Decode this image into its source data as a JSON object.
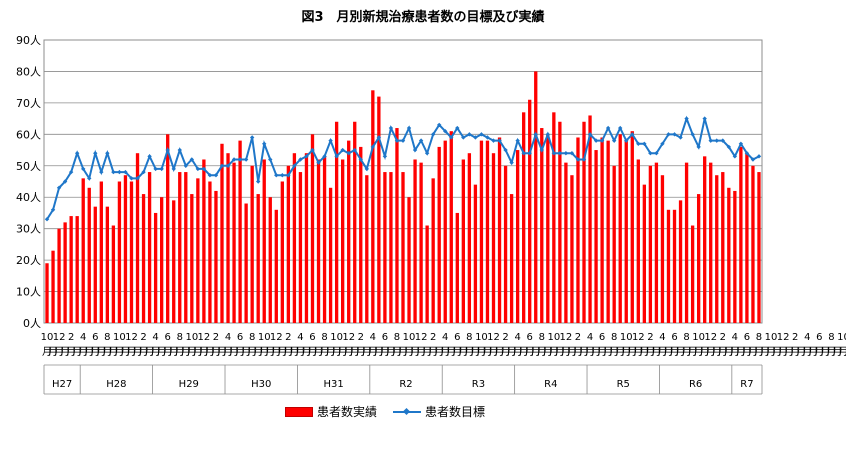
{
  "chart_data": {
    "type": "bar",
    "title": "図3　月別新規治療患者数の目標及び実績",
    "ylim": [
      0,
      90
    ],
    "y_ticks": [
      "0人",
      "10人",
      "20人",
      "30人",
      "40人",
      "50人",
      "60人",
      "70人",
      "80人",
      "90人"
    ],
    "grid": true,
    "legend_position": "bottom",
    "month_labels": [
      "10",
      "",
      "12",
      "",
      "2",
      "",
      "4",
      "",
      "6",
      "",
      "8",
      "",
      "10",
      "",
      "12",
      "",
      "2",
      "",
      "4",
      "",
      "6",
      "",
      "8",
      "",
      "10",
      "",
      "12",
      "",
      "2",
      "",
      "4",
      "",
      "6",
      "",
      "8",
      "",
      "10",
      "",
      "12",
      "",
      "2",
      "",
      "4",
      "",
      "6",
      "",
      "8",
      "",
      "10",
      "",
      "12",
      "",
      "2",
      "",
      "4",
      "",
      "6",
      "",
      "8",
      "",
      "10",
      "",
      "12",
      "",
      "2",
      "",
      "4",
      "",
      "6",
      "",
      "8",
      "",
      "10",
      "",
      "12",
      "",
      "2",
      "",
      "4",
      "",
      "6",
      "",
      "8",
      "",
      "10",
      "",
      "12",
      "",
      "2",
      "",
      "4",
      "",
      "6",
      "",
      "8",
      "",
      "10",
      "",
      "12",
      "",
      "2",
      "",
      "4",
      "",
      "6",
      "",
      "8",
      "",
      "10",
      "",
      "12",
      "",
      "2",
      "",
      "4",
      "",
      "6",
      "",
      "8",
      "",
      "10",
      "",
      "12",
      "",
      "2",
      "",
      "4",
      "",
      "6",
      "",
      "8",
      "",
      "10",
      "",
      "12",
      "",
      "2",
      "",
      "4"
    ],
    "month_unit": "月",
    "year_groups": [
      {
        "label": "H27",
        "start": 0,
        "end": 5
      },
      {
        "label": "H28",
        "start": 6,
        "end": 17
      },
      {
        "label": "H29",
        "start": 18,
        "end": 29
      },
      {
        "label": "H30",
        "start": 30,
        "end": 41
      },
      {
        "label": "H31",
        "start": 42,
        "end": 53
      },
      {
        "label": "R2",
        "start": 54,
        "end": 65
      },
      {
        "label": "R3",
        "start": 66,
        "end": 77
      },
      {
        "label": "R4",
        "start": 78,
        "end": 89
      },
      {
        "label": "R5",
        "start": 90,
        "end": 101
      },
      {
        "label": "R6",
        "start": 102,
        "end": 113
      },
      {
        "label": "R7",
        "start": 114,
        "end": 118
      }
    ],
    "series": [
      {
        "name": "患者数実績",
        "kind": "bar",
        "color": "#ff0000",
        "values": [
          19,
          23,
          30,
          32,
          34,
          34,
          46,
          43,
          37,
          45,
          37,
          31,
          45,
          47,
          45,
          54,
          41,
          48,
          35,
          40,
          60,
          39,
          48,
          48,
          41,
          46,
          52,
          45,
          42,
          57,
          54,
          51,
          58,
          38,
          50,
          41,
          52,
          40,
          36,
          45,
          50,
          54,
          48,
          54,
          60,
          52,
          53,
          43,
          64,
          52,
          58,
          64,
          56,
          47,
          74,
          72,
          48,
          48,
          62,
          48,
          40,
          52,
          51,
          31,
          46,
          56,
          58,
          61,
          35,
          52,
          54,
          44,
          58,
          58,
          54,
          59,
          50,
          41,
          55,
          67,
          71,
          80,
          62,
          60,
          67,
          64,
          51,
          47,
          59,
          64,
          66,
          55,
          59,
          58,
          50,
          60,
          58,
          61,
          52,
          44,
          50,
          51,
          47,
          36,
          36,
          39,
          51,
          31,
          41,
          53,
          51,
          47,
          48,
          43,
          42,
          56,
          54,
          50,
          48
        ]
      },
      {
        "name": "患者数目標",
        "kind": "line",
        "color": "#1f77c9",
        "values": [
          33,
          36,
          43,
          45,
          48,
          54,
          49,
          46,
          54,
          48,
          54,
          48,
          48,
          48,
          46,
          46,
          48,
          53,
          49,
          49,
          55,
          49,
          55,
          50,
          52,
          49,
          49,
          47,
          47,
          50,
          50,
          52,
          52,
          52,
          59,
          45,
          57,
          52,
          47,
          47,
          47,
          50,
          52,
          53,
          55,
          51,
          53,
          58,
          53,
          55,
          54,
          55,
          52,
          49,
          56,
          59,
          53,
          62,
          58,
          58,
          62,
          55,
          58,
          54,
          60,
          63,
          61,
          59,
          62,
          59,
          60,
          59,
          60,
          59,
          58,
          58,
          55,
          51,
          58,
          54,
          54,
          60,
          55,
          60,
          54,
          54,
          54,
          54,
          52,
          52,
          60,
          58,
          58,
          62,
          58,
          62,
          58,
          60,
          57,
          57,
          54,
          54,
          57,
          60,
          60,
          59,
          65,
          60,
          56,
          65,
          58,
          58,
          58,
          56,
          53,
          57,
          54,
          52,
          53
        ]
      }
    ]
  }
}
